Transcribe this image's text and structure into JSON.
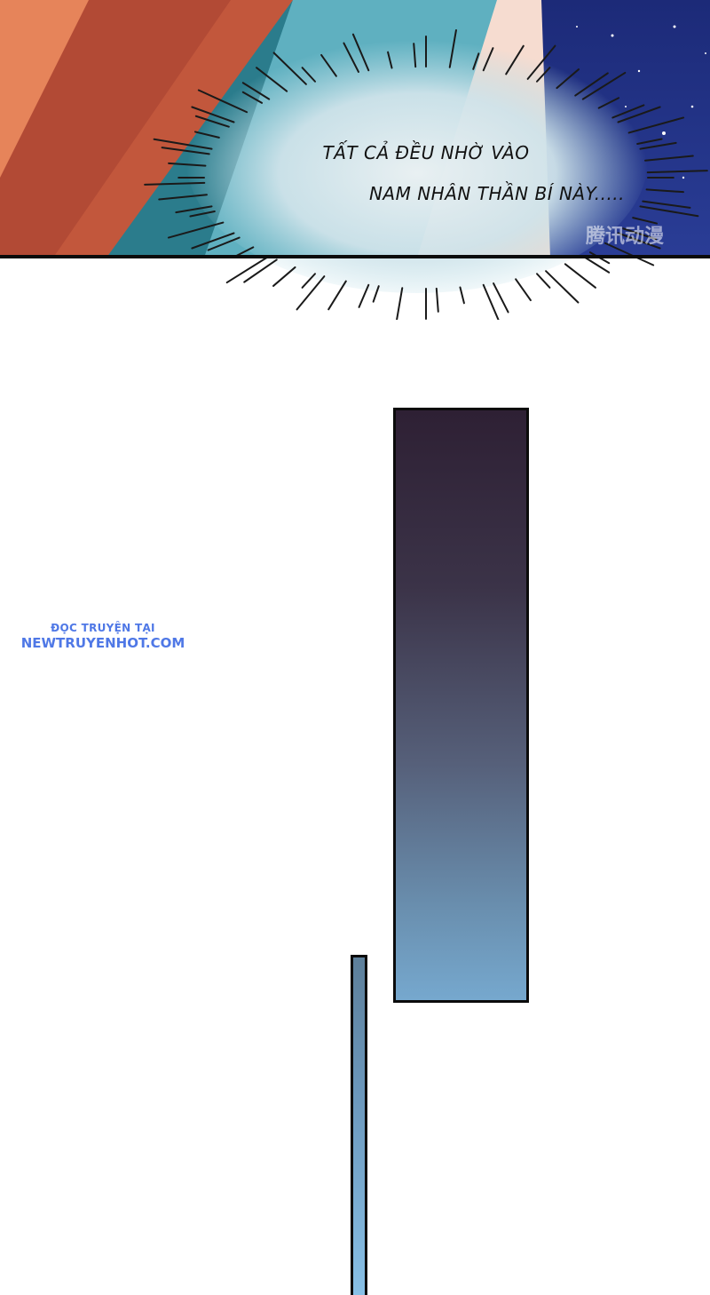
{
  "top_panel": {
    "caption_line1": "TẤT CẢ ĐỀU NHỜ VÀO",
    "caption_line2": "NAM NHÂN THẦN BÍ NÀY.....",
    "logo": "腾讯动漫"
  },
  "watermark": {
    "line1": "ĐỌC TRUYỆN TẠI",
    "line2": "NEWTRUYENHOT.COM",
    "color": "#4f78e6"
  },
  "colors": {
    "panel_border": "#0b0b0b",
    "tall_panel_top": "#2e2034",
    "tall_panel_bottom": "#76a8ce",
    "thin_panel_bottom": "#88c0e6"
  }
}
